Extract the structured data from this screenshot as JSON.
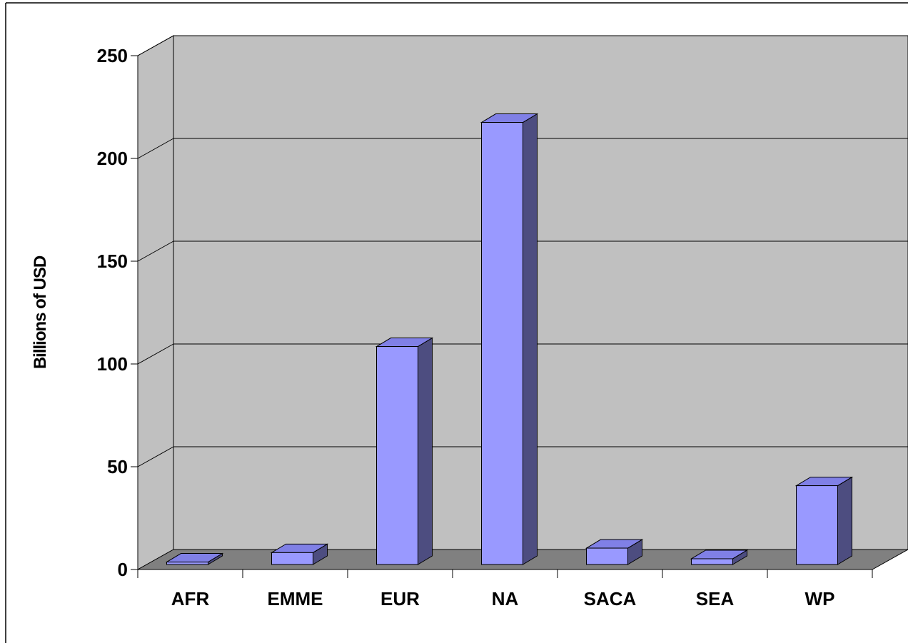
{
  "chart_data": {
    "type": "bar",
    "title": "",
    "xlabel": "",
    "ylabel": "Billions of USD",
    "categories": [
      "AFR",
      "EMME",
      "EUR",
      "NA",
      "SACA",
      "SEA",
      "WP"
    ],
    "values": [
      1.2,
      5.8,
      106.5,
      216.0,
      8.0,
      2.8,
      38.5
    ],
    "ylim": [
      0,
      250
    ],
    "yticks": [
      "0",
      "50",
      "100",
      "150",
      "200",
      "250"
    ],
    "grid": true,
    "style": "3d-column",
    "colors": {
      "bar_front": "#9999ff",
      "bar_top": "#8080e6",
      "bar_side": "#4d4d80",
      "wall": "#c0c0c0",
      "floor": "#808080",
      "outline": "#000000"
    }
  }
}
